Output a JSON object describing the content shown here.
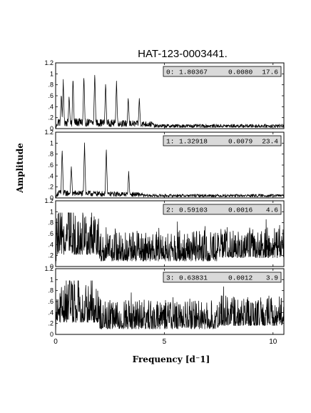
{
  "chart_data": {
    "type": "line",
    "title": "HAT-123-0003441.",
    "xlabel": "Frequency [d⁻1]",
    "ylabel": "Amplitude",
    "xlim": [
      0,
      10.5
    ],
    "ylim": [
      0,
      1.2
    ],
    "x_ticks": [
      0,
      5,
      10
    ],
    "y_tick_labels": [
      "0",
      ".2",
      ".4",
      ".6",
      ".8",
      "1",
      "1.2"
    ],
    "y_tick_values": [
      0,
      0.2,
      0.4,
      0.6,
      0.8,
      1.0,
      1.2
    ],
    "grid": false,
    "panels": [
      {
        "index": "0",
        "legend": {
          "label": "0:",
          "frequency": "1.80367",
          "amplitude": "0.0080",
          "snr": "17.6"
        },
        "kind": "peaks",
        "baseline": 0.18,
        "decay_freq": 4.5,
        "floor": 0.07,
        "peaks": [
          {
            "x": 0.26,
            "y": 0.62
          },
          {
            "x": 0.35,
            "y": 0.85
          },
          {
            "x": 0.62,
            "y": 0.58
          },
          {
            "x": 0.8,
            "y": 0.92
          },
          {
            "x": 1.3,
            "y": 0.96
          },
          {
            "x": 1.8,
            "y": 1.0
          },
          {
            "x": 2.3,
            "y": 0.83
          },
          {
            "x": 2.8,
            "y": 0.85
          },
          {
            "x": 3.34,
            "y": 0.54
          },
          {
            "x": 3.85,
            "y": 0.54
          }
        ]
      },
      {
        "index": "1",
        "legend": {
          "label": "1:",
          "frequency": "1.32918",
          "amplitude": "0.0079",
          "snr": "23.4"
        },
        "kind": "peaks",
        "baseline": 0.13,
        "decay_freq": 4.0,
        "floor": 0.06,
        "peaks": [
          {
            "x": 0.3,
            "y": 0.88
          },
          {
            "x": 0.72,
            "y": 0.58
          },
          {
            "x": 1.33,
            "y": 1.0
          },
          {
            "x": 2.33,
            "y": 0.88
          },
          {
            "x": 3.36,
            "y": 0.45
          }
        ]
      },
      {
        "index": "2",
        "legend": {
          "label": "2:",
          "frequency": "0.59103",
          "amplitude": "0.0016",
          "snr": "4.6"
        },
        "kind": "noise",
        "peak_max": 0.98,
        "peak_freq": 0.59
      },
      {
        "index": "3",
        "legend": {
          "label": "3:",
          "frequency": "0.63831",
          "amplitude": "0.0012",
          "snr": "3.9"
        },
        "kind": "noise",
        "peak_max": 0.98,
        "peak_freq": 0.64
      }
    ]
  }
}
